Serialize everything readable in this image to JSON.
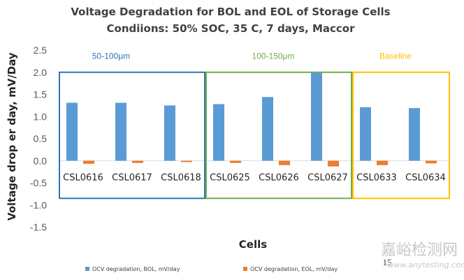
{
  "chart_data": {
    "type": "bar",
    "title_line1": "Voltage Degradation for BOL and EOL of Storage Cells",
    "title_line2": "Condiions: 50% SOC, 35 C, 7 days, Maccor",
    "xlabel": "Cells",
    "ylabel": "Voltage drop er day, mV/Day",
    "ylim": [
      -1.5,
      2.5
    ],
    "yticks": [
      "2.5",
      "2.0",
      "1.5",
      "1.0",
      "0.5",
      "0.0",
      "-0.5",
      "-1.0",
      "-1.5"
    ],
    "categories": [
      "CSL0616",
      "CSL0617",
      "CSL0618",
      "CSL0625",
      "CSL0626",
      "CSL0627",
      "CSL0633",
      "CSL0634"
    ],
    "series": [
      {
        "name": "OCV degradation, BOL, mV/day",
        "color": "#5b9bd5",
        "values": [
          1.31,
          1.31,
          1.25,
          1.28,
          1.44,
          1.99,
          1.21,
          1.19
        ]
      },
      {
        "name": "OCV degradation, EOL, mV/day",
        "color": "#ed7d31",
        "values": [
          -0.07,
          -0.05,
          -0.03,
          -0.05,
          -0.1,
          -0.13,
          -0.1,
          -0.06
        ]
      }
    ],
    "groups": [
      {
        "label": "50-100μm",
        "color": "#2e75b6",
        "cat_start": 0,
        "cat_end": 2
      },
      {
        "label": "100-150μm",
        "color": "#70ad47",
        "cat_start": 3,
        "cat_end": 5
      },
      {
        "label": "Baseline",
        "color": "#ffc000",
        "cat_start": 6,
        "cat_end": 7
      }
    ]
  },
  "page_number": "15",
  "watermark": {
    "text": "嘉峪检测网",
    "url": "www.anytesting.com"
  }
}
